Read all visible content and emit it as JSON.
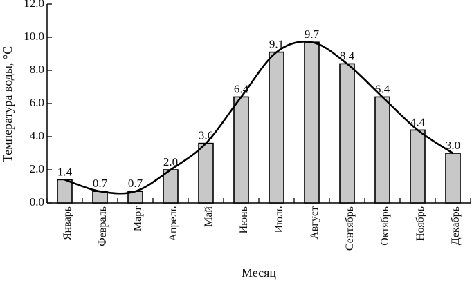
{
  "chart_data": {
    "type": "bar",
    "title": "",
    "xlabel": "Месяц",
    "ylabel": "Температура воды, °C",
    "ylim": [
      0,
      12
    ],
    "yticks": [
      0,
      2,
      4,
      6,
      8,
      10,
      12
    ],
    "ytick_labels": [
      "0.0",
      "2.0",
      "4.0",
      "6.0",
      "8.0",
      "10.0",
      "12.0"
    ],
    "categories": [
      "Январь",
      "Февраль",
      "Март",
      "Апрель",
      "Май",
      "Июнь",
      "Июль",
      "Август",
      "Сентябрь",
      "Октябрь",
      "Ноябрь",
      "Декабрь"
    ],
    "values": [
      1.4,
      0.7,
      0.7,
      2.0,
      3.6,
      6.4,
      9.1,
      9.7,
      8.4,
      6.4,
      4.4,
      3.0
    ],
    "data_labels": [
      "1.4",
      "0.7",
      "0.7",
      "2.0",
      "3.6",
      "6.4",
      "9.1",
      "9.7",
      "8.4",
      "6.4",
      "4.4",
      "3.0"
    ],
    "smooth_trend_line": true,
    "grid": false,
    "colors": {
      "bar_fill": "#c8c8c8",
      "bar_stroke": "#000000",
      "line": "#000000"
    }
  }
}
